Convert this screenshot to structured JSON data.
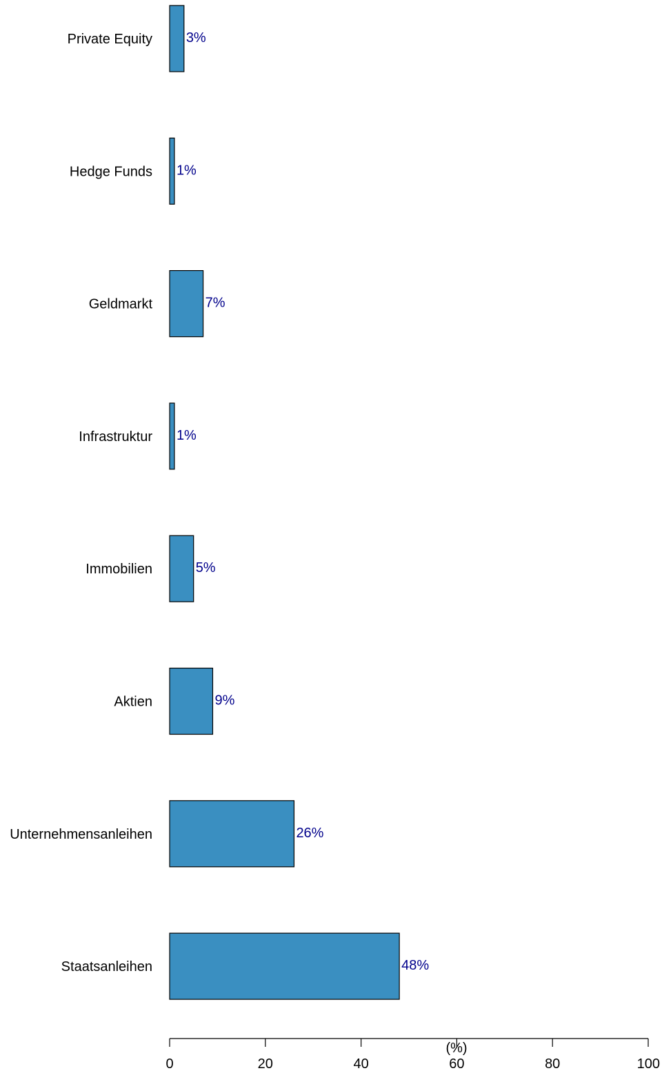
{
  "chart_data": {
    "type": "bar",
    "orientation": "horizontal",
    "categories": [
      "Private Equity",
      "Hedge Funds",
      "Geldmarkt",
      "Infrastruktur",
      "Immobilien",
      "Aktien",
      "Unternehmensanleihen",
      "Staatsanleihen"
    ],
    "values": [
      3,
      1,
      7,
      1,
      5,
      9,
      26,
      48
    ],
    "value_labels": [
      "3%",
      "1%",
      "7%",
      "1%",
      "5%",
      "9%",
      "26%",
      "48%"
    ],
    "xlabel": "(%)",
    "xlim": [
      0,
      100
    ],
    "xticks": [
      "0",
      "20",
      "40",
      "60",
      "80",
      "100"
    ],
    "grid": false,
    "colors": {
      "bar": "#3a8fc1",
      "bar_edge": "#000000",
      "value_label": "#00008b",
      "axis": "#000000"
    }
  }
}
